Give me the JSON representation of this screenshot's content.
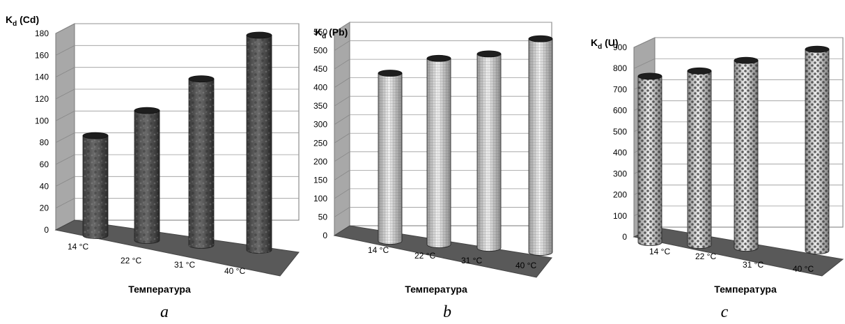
{
  "chart_data": [
    {
      "type": "bar",
      "panel_label": "a",
      "ylabel_main": "K",
      "ylabel_sub": "d",
      "ylabel_rest": " (Cd)",
      "xlabel": "Температура",
      "categories": [
        "14 °C",
        "22 °C",
        "31 °C",
        "40 °C"
      ],
      "values": [
        80,
        103,
        132,
        172
      ],
      "ylim": [
        0,
        180
      ],
      "yticks": [
        0,
        20,
        40,
        60,
        80,
        100,
        120,
        140,
        160,
        180
      ],
      "grid": true,
      "color": "#4a4a4a"
    },
    {
      "type": "bar",
      "panel_label": "b",
      "ylabel_main": "K",
      "ylabel_sub": "d",
      "ylabel_rest": " (Pb)",
      "xlabel": "Температура",
      "categories": [
        "14 °C",
        "22 °C",
        "31 °C",
        "40 °C"
      ],
      "values": [
        420,
        460,
        472,
        513
      ],
      "ylim": [
        0,
        550
      ],
      "yticks": [
        0,
        50,
        100,
        150,
        200,
        250,
        300,
        350,
        400,
        450,
        500,
        550
      ],
      "grid": true,
      "color": "#c8c8c8"
    },
    {
      "type": "bar",
      "panel_label": "c",
      "ylabel_main": "K",
      "ylabel_sub": "d",
      "ylabel_rest": " (U)",
      "xlabel": "Температура",
      "categories": [
        "14 °C",
        "22 °C",
        "31 °C",
        "40 °C"
      ],
      "values": [
        730,
        755,
        805,
        858
      ],
      "ylim": [
        0,
        900
      ],
      "yticks": [
        0,
        100,
        200,
        300,
        400,
        500,
        600,
        700,
        800,
        900
      ],
      "grid": true,
      "color": "#d0d0d0"
    }
  ]
}
